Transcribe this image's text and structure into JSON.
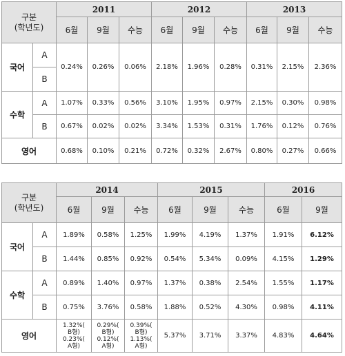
{
  "header_label_line1": "구분",
  "header_label_line2": "(학년도)",
  "table1": {
    "years": [
      "2011",
      "2012",
      "2013"
    ],
    "months": [
      "6월",
      "9월",
      "수능",
      "6월",
      "9월",
      "수능",
      "6월",
      "9월",
      "수능"
    ],
    "subjects": {
      "korean": "국어",
      "math": "수학",
      "english": "영어",
      "type_a": "A",
      "type_b": "B"
    },
    "rows": {
      "korean": [
        "0.24%",
        "0.26%",
        "0.06%",
        "2.18%",
        "1.96%",
        "0.28%",
        "0.31%",
        "2.15%",
        "2.36%"
      ],
      "math_a": [
        "1.07%",
        "0.33%",
        "0.56%",
        "3.10%",
        "1.95%",
        "0.97%",
        "2.15%",
        "0.30%",
        "0.98%"
      ],
      "math_b": [
        "0.67%",
        "0.02%",
        "0.02%",
        "3.34%",
        "1.53%",
        "0.31%",
        "1.76%",
        "0.12%",
        "0.76%"
      ],
      "english": [
        "0.68%",
        "0.10%",
        "0.21%",
        "0.72%",
        "0.32%",
        "2.67%",
        "0.80%",
        "0.27%",
        "0.66%"
      ]
    }
  },
  "table2": {
    "years": [
      "2014",
      "2015",
      "2016"
    ],
    "months": [
      "6월",
      "9월",
      "수능",
      "6월",
      "9월",
      "수능",
      "6월",
      "9월"
    ],
    "subjects": {
      "korean": "국어",
      "math": "수학",
      "english": "영어",
      "type_a": "A",
      "type_b": "B"
    },
    "rows": {
      "korean_a": [
        "1.89%",
        "0.58%",
        "1.25%",
        "1.99%",
        "4.19%",
        "1.37%",
        "1.91%",
        "6.12%"
      ],
      "korean_b": [
        "1.44%",
        "0.85%",
        "0.92%",
        "0.54%",
        "5.34%",
        "0.09%",
        "4.15%",
        "1.29%"
      ],
      "math_a": [
        "0.89%",
        "1.40%",
        "0.97%",
        "1.37%",
        "0.38%",
        "2.54%",
        "1.55%",
        "1.17%"
      ],
      "math_b": [
        "0.75%",
        "3.76%",
        "0.58%",
        "1.88%",
        "0.52%",
        "4.30%",
        "0.98%",
        "4.11%"
      ],
      "english_split": [
        {
          "l1": "1.32%(",
          "l2": "B형)",
          "l3": "0.23%(",
          "l4": "A형)"
        },
        {
          "l1": "0.29%(",
          "l2": "B형)",
          "l3": "0.12%(",
          "l4": "A형)"
        },
        {
          "l1": "0.39%(",
          "l2": "B형)",
          "l3": "1.13%(",
          "l4": "A형)"
        }
      ],
      "english": [
        "5.37%",
        "3.71%",
        "3.37%",
        "4.83%",
        "4.64%"
      ]
    }
  }
}
